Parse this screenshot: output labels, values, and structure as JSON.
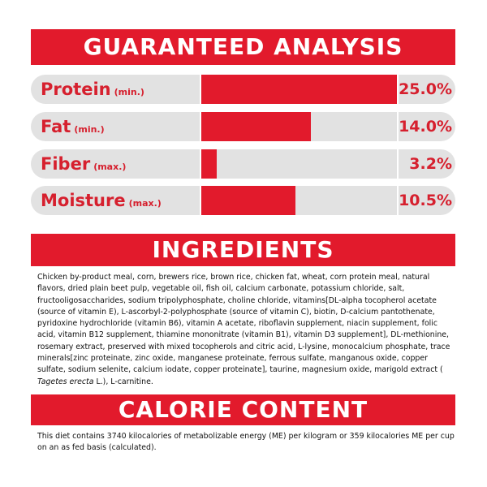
{
  "guaranteed_analysis": {
    "title": "GUARANTEED ANALYSIS",
    "rows": [
      {
        "label": "Protein",
        "qualifier": "(min.)",
        "value": "25.0%",
        "fill_fraction": 1.0
      },
      {
        "label": "Fat",
        "qualifier": "(min.)",
        "value": "14.0%",
        "fill_fraction": 0.56
      },
      {
        "label": "Fiber",
        "qualifier": "(max.)",
        "value": "3.2%",
        "fill_fraction": 0.08
      },
      {
        "label": "Moisture",
        "qualifier": "(max.)",
        "value": "10.5%",
        "fill_fraction": 0.48
      }
    ]
  },
  "ingredients": {
    "title": "INGREDIENTS",
    "text_before_italic": "Chicken by-product meal, corn, brewers rice, brown rice, chicken fat, wheat, corn protein meal, natural flavors, dried plain beet pulp, vegetable oil, fish oil, calcium carbonate, potassium chloride, salt, fructooligosaccharides, sodium tripolyphosphate, choline chloride, vitamins[DL-alpha tocopherol acetate (source of vitamin E), L-ascorbyl-2-polyphosphate (source of vitamin C), biotin, D-calcium pantothenate, pyridoxine hydrochloride (vitamin B6), vitamin A acetate, riboflavin supplement, niacin supplement, folic acid, vitamin B12 supplement, thiamine mononitrate (vitamin B1), vitamin D3 supplement], DL-methionine, rosemary extract, preserved with mixed tocopherols and citric acid, L-lysine, monocalcium phosphate, trace minerals[zinc proteinate, zinc oxide, manganese proteinate, ferrous sulfate, manganous oxide, copper sulfate, sodium selenite, calcium iodate, copper proteinate], taurine, magnesium oxide, marigold extract ( ",
    "italic": "Tagetes erecta",
    "text_after_italic": " L.), L-carnitine."
  },
  "calorie_content": {
    "title": "CALORIE CONTENT",
    "text": "This diet contains 3740 kilocalories of metabolizable energy (ME) per kilogram or 359 kilocalories ME per cup on an as fed basis (calculated)."
  },
  "colors": {
    "accent_red": "#e21a2c",
    "label_red": "#d6202e",
    "row_gray": "#e2e2e2"
  }
}
